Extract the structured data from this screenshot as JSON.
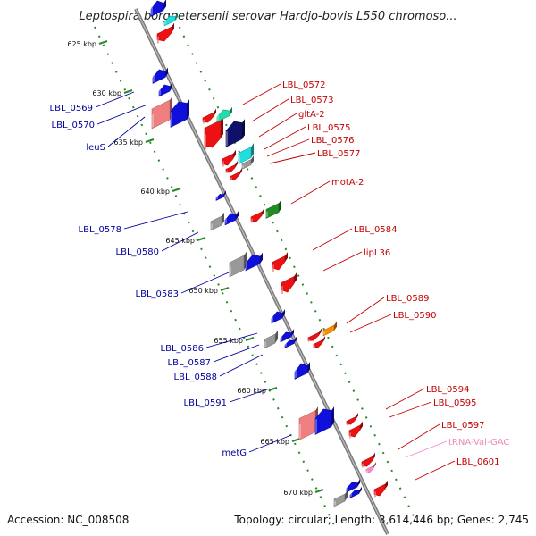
{
  "title": "Leptospira borgpetersenii serovar Hardjo-bovis L550 chromoso...",
  "footer": {
    "accession": "Accession: NC_008508",
    "topology": "Topology: circular; Length: 3,614,446 bp; Genes: 2,745"
  },
  "scale": [
    "625 kbp",
    "630 kbp",
    "635 kbp",
    "640 kbp",
    "645 kbp",
    "650 kbp",
    "655 kbp",
    "660 kbp",
    "665 kbp",
    "670 kbp"
  ],
  "left_labels": [
    "LBL_0569",
    "LBL_0570",
    "leuS",
    "LBL_0578",
    "LBL_0580",
    "LBL_0583",
    "LBL_0586",
    "LBL_0587",
    "LBL_0588",
    "LBL_0591",
    "metG"
  ],
  "right_labels": [
    "LBL_0572",
    "LBL_0573",
    "gltA-2",
    "LBL_0575",
    "LBL_0576",
    "LBL_0577",
    "motA-2",
    "LBL_0584",
    "lipL36",
    "LBL_0589",
    "LBL_0590",
    "LBL_0594",
    "LBL_0595",
    "LBL_0597",
    "tRNA-Val-GAC",
    "LBL_0601"
  ],
  "colors": {
    "forward_gene": "#1010dd",
    "reverse_gene": "#ee1111",
    "pseudo_light": "#f08080",
    "grey_gene": "#999999",
    "cyan_gene": "#22dddd",
    "teal_gene": "#22ddaa",
    "navy_gene": "#10106a",
    "green_gene": "#228b22",
    "orange_gene": "#ff8c00",
    "trna_gene": "#ff88cc",
    "ruler": "#2a8a2a",
    "backbone": "#888888",
    "left_label": "#00009a",
    "right_label": "#c40000"
  }
}
